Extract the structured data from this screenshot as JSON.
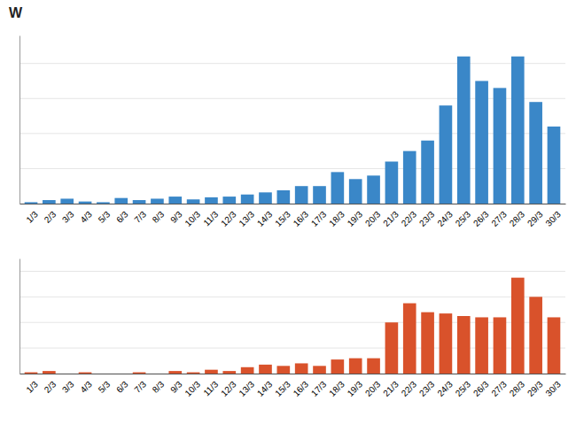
{
  "chart_data": [
    {
      "type": "bar",
      "title": "W",
      "categories": [
        "1/3",
        "2/3",
        "3/3",
        "4/3",
        "5/3",
        "6/3",
        "7/3",
        "8/3",
        "9/3",
        "10/3",
        "11/3",
        "12/3",
        "13/3",
        "14/3",
        "15/3",
        "16/3",
        "17/3",
        "18/3",
        "19/3",
        "20/3",
        "21/3",
        "22/3",
        "23/3",
        "24/3",
        "25/3",
        "26/3",
        "27/3",
        "28/3",
        "29/3",
        "30/3"
      ],
      "values": [
        2,
        5,
        7,
        3,
        2,
        8,
        5,
        7,
        10,
        6,
        9,
        10,
        13,
        16,
        19,
        25,
        25,
        45,
        35,
        40,
        60,
        75,
        90,
        140,
        210,
        175,
        165,
        210,
        145,
        110
      ],
      "color": "#3a87c8",
      "ylim": [
        0,
        240
      ],
      "yticks": [
        0,
        50,
        100,
        150,
        200
      ],
      "grid": true,
      "tick_labels": "x"
    },
    {
      "type": "bar",
      "categories": [
        "1/3",
        "2/3",
        "3/3",
        "4/3",
        "5/3",
        "6/3",
        "7/3",
        "8/3",
        "9/3",
        "10/3",
        "11/3",
        "12/3",
        "13/3",
        "14/3",
        "15/3",
        "16/3",
        "17/3",
        "18/3",
        "19/3",
        "20/3",
        "21/3",
        "22/3",
        "23/3",
        "24/3",
        "25/3",
        "26/3",
        "27/3",
        "28/3",
        "29/3",
        "30/3"
      ],
      "values": [
        1,
        2,
        0,
        1,
        0,
        0,
        1,
        0,
        2,
        1,
        3,
        2,
        5,
        7,
        6,
        8,
        6,
        11,
        12,
        12,
        40,
        55,
        48,
        47,
        45,
        44,
        44,
        75,
        60,
        44
      ],
      "color": "#d9522b",
      "ylim": [
        0,
        90
      ],
      "yticks": [
        0,
        20,
        40,
        60,
        80
      ],
      "grid": true,
      "tick_labels": "x"
    }
  ]
}
